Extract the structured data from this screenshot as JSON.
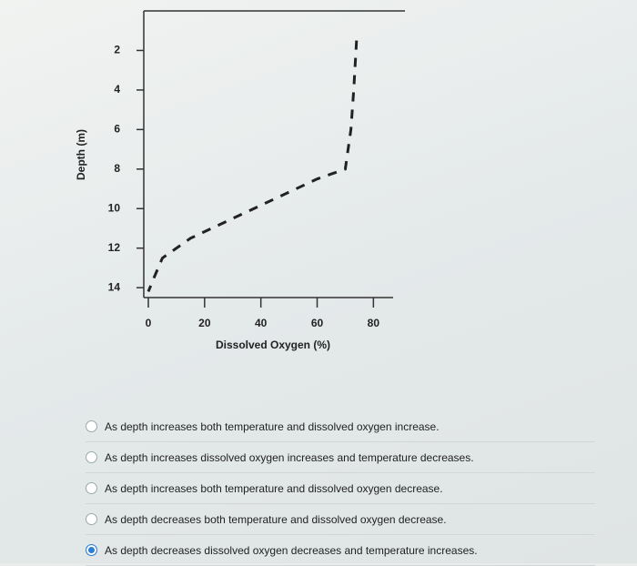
{
  "chart_data": {
    "type": "line",
    "x_label": "Dissolved Oxygen (%)",
    "y_label": "Depth (m)",
    "xlim": [
      0,
      87
    ],
    "xticks": [
      0,
      20,
      40,
      60,
      80
    ],
    "ylim": [
      0,
      14.5
    ],
    "yticks": [
      2,
      4,
      6,
      8,
      10,
      12,
      14
    ],
    "y_inverted": true,
    "color": "#222222",
    "x": [
      74,
      73,
      72,
      70,
      60,
      45,
      30,
      15,
      5,
      2,
      0
    ],
    "values": [
      1.5,
      4,
      6,
      8,
      8.5,
      9.5,
      10.5,
      11.5,
      12.5,
      13.5,
      14.2
    ]
  },
  "question": {
    "options": [
      "As depth increases both temperature and dissolved oxygen increase.",
      "As depth increases dissolved oxygen increases and temperature decreases.",
      "As depth increases both temperature and dissolved oxygen decrease.",
      "As depth decreases both temperature and dissolved oxygen decrease.",
      "As depth decreases dissolved oxygen decreases and temperature increases."
    ],
    "selected": 4
  }
}
